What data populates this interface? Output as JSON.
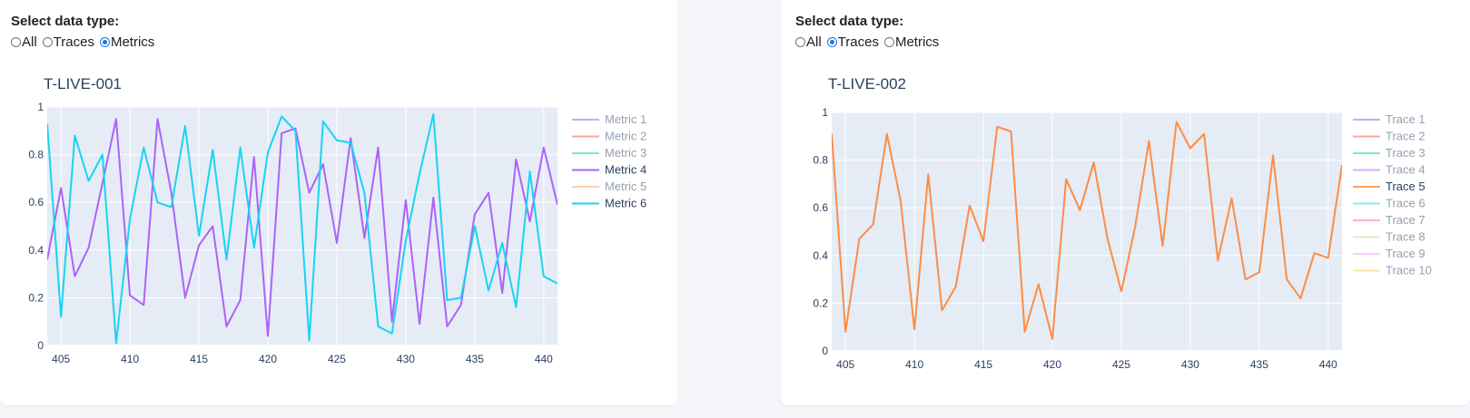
{
  "panels": [
    {
      "select_label": "Select data type:",
      "options": [
        "All",
        "Traces",
        "Metrics"
      ],
      "selected": "Metrics"
    },
    {
      "select_label": "Select data type:",
      "options": [
        "All",
        "Traces",
        "Metrics"
      ],
      "selected": "Traces"
    }
  ],
  "chart_data": [
    {
      "type": "line",
      "title": "T-LIVE-001",
      "xlabel": "",
      "ylabel": "",
      "xlim": [
        404,
        441
      ],
      "ylim": [
        0,
        1
      ],
      "xticks": [
        405,
        410,
        415,
        420,
        425,
        430,
        435,
        440
      ],
      "yticks": [
        0,
        0.2,
        0.4,
        0.6,
        0.8,
        1
      ],
      "ytick_labels": [
        "0",
        "0.2",
        "0.4",
        "0.6",
        "0.8",
        "1"
      ],
      "grid": true,
      "legend_position": "right",
      "legend": [
        {
          "name": "Metric 1",
          "color": "#636efa",
          "active": false
        },
        {
          "name": "Metric 2",
          "color": "#ef553b",
          "active": false
        },
        {
          "name": "Metric 3",
          "color": "#00cc96",
          "active": false
        },
        {
          "name": "Metric 4",
          "color": "#ab63fa",
          "active": true
        },
        {
          "name": "Metric 5",
          "color": "#ffa15a",
          "active": false
        },
        {
          "name": "Metric 6",
          "color": "#19d3f3",
          "active": true
        }
      ],
      "x": [
        404,
        405,
        406,
        407,
        408,
        409,
        410,
        411,
        412,
        413,
        414,
        415,
        416,
        417,
        418,
        419,
        420,
        421,
        422,
        423,
        424,
        425,
        426,
        427,
        428,
        429,
        430,
        431,
        432,
        433,
        434,
        435,
        436,
        437,
        438,
        439,
        440,
        441
      ],
      "series": [
        {
          "name": "Metric 4",
          "color": "#ab63fa",
          "values": [
            0.36,
            0.66,
            0.29,
            0.41,
            0.68,
            0.95,
            0.21,
            0.17,
            0.95,
            0.64,
            0.2,
            0.42,
            0.5,
            0.08,
            0.19,
            0.79,
            0.04,
            0.89,
            0.91,
            0.64,
            0.76,
            0.43,
            0.87,
            0.45,
            0.83,
            0.1,
            0.61,
            0.09,
            0.62,
            0.08,
            0.17,
            0.55,
            0.64,
            0.22,
            0.78,
            0.52,
            0.83,
            0.59
          ]
        },
        {
          "name": "Metric 6",
          "color": "#19d3f3",
          "values": [
            0.93,
            0.12,
            0.88,
            0.69,
            0.8,
            0.01,
            0.53,
            0.83,
            0.6,
            0.58,
            0.92,
            0.46,
            0.82,
            0.36,
            0.83,
            0.41,
            0.81,
            0.96,
            0.9,
            0.02,
            0.94,
            0.86,
            0.85,
            0.64,
            0.08,
            0.05,
            0.44,
            0.72,
            0.97,
            0.19,
            0.2,
            0.5,
            0.23,
            0.43,
            0.16,
            0.73,
            0.29,
            0.26
          ]
        }
      ]
    },
    {
      "type": "line",
      "title": "T-LIVE-002",
      "xlabel": "",
      "ylabel": "",
      "xlim": [
        404,
        441
      ],
      "ylim": [
        0,
        1
      ],
      "xticks": [
        405,
        410,
        415,
        420,
        425,
        430,
        435,
        440
      ],
      "yticks": [
        0,
        0.2,
        0.4,
        0.6,
        0.8,
        1
      ],
      "ytick_labels": [
        "0",
        "0.2",
        "0.4",
        "0.6",
        "0.8",
        "1"
      ],
      "grid": true,
      "legend_position": "right",
      "legend": [
        {
          "name": "Trace 1",
          "color": "#636efa",
          "active": false
        },
        {
          "name": "Trace 2",
          "color": "#ef553b",
          "active": false
        },
        {
          "name": "Trace 3",
          "color": "#00cc96",
          "active": false
        },
        {
          "name": "Trace 4",
          "color": "#ab63fa",
          "active": false
        },
        {
          "name": "Trace 5",
          "color": "#ffa15a",
          "active": true
        },
        {
          "name": "Trace 6",
          "color": "#19d3f3",
          "active": false
        },
        {
          "name": "Trace 7",
          "color": "#ff6692",
          "active": false
        },
        {
          "name": "Trace 8",
          "color": "#b6e880",
          "active": false
        },
        {
          "name": "Trace 9",
          "color": "#ff97ff",
          "active": false
        },
        {
          "name": "Trace 10",
          "color": "#fecb52",
          "active": false
        }
      ],
      "x": [
        404,
        405,
        406,
        407,
        408,
        409,
        410,
        411,
        412,
        413,
        414,
        415,
        416,
        417,
        418,
        419,
        420,
        421,
        422,
        423,
        424,
        425,
        426,
        427,
        428,
        429,
        430,
        431,
        432,
        433,
        434,
        435,
        436,
        437,
        438,
        439,
        440,
        441
      ],
      "series": [
        {
          "name": "Trace 5",
          "color": "#ff8c42",
          "values": [
            0.91,
            0.08,
            0.47,
            0.53,
            0.91,
            0.63,
            0.09,
            0.74,
            0.17,
            0.27,
            0.61,
            0.46,
            0.94,
            0.92,
            0.08,
            0.28,
            0.05,
            0.72,
            0.59,
            0.79,
            0.47,
            0.25,
            0.52,
            0.88,
            0.44,
            0.96,
            0.85,
            0.91,
            0.38,
            0.64,
            0.3,
            0.33,
            0.82,
            0.3,
            0.22,
            0.41,
            0.39,
            0.78
          ]
        }
      ]
    }
  ]
}
